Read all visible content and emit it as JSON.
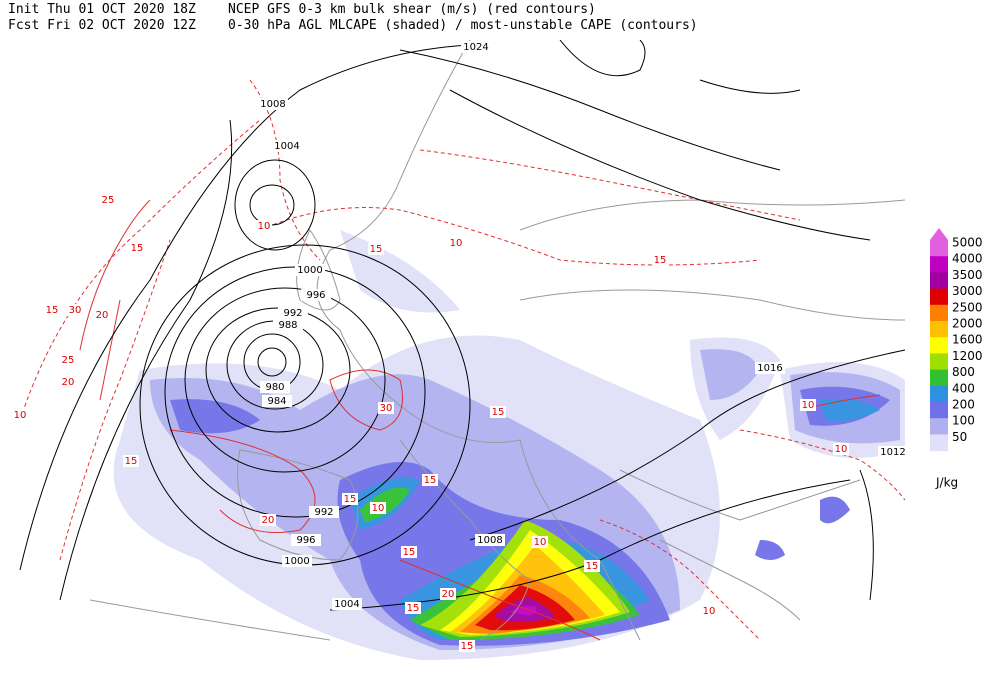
{
  "header": {
    "init": "Init  Thu 01 OCT 2020 18Z",
    "fcst": "Fcst Fri 02 OCT 2020 12Z",
    "title1": "NCEP GFS 0-3 km bulk shear (m/s) (red contours)",
    "title2": "0-30 hPa AGL MLCAPE (shaded) / most-unstable CAPE (contours)"
  },
  "legend": {
    "values": [
      5000,
      4000,
      3500,
      3000,
      2500,
      2000,
      1600,
      1200,
      800,
      400,
      200,
      100,
      50
    ],
    "colors": [
      "#e060e0",
      "#c000c0",
      "#a000a0",
      "#e00000",
      "#ff8000",
      "#ffc000",
      "#ffff00",
      "#a0e000",
      "#30c030",
      "#3090e0",
      "#7070e8",
      "#b0b0f0",
      "#e0e0f8"
    ],
    "unit": "J/kg"
  },
  "isobar_labels": [
    1024,
    1008,
    1004,
    1000,
    996,
    992,
    988,
    980,
    984,
    1016,
    1012,
    1008,
    1004,
    1000,
    996,
    992
  ],
  "shear_labels": [
    25,
    15,
    15,
    30,
    20,
    25,
    20,
    10,
    15,
    10,
    15,
    15,
    20,
    15,
    15,
    10,
    15,
    10,
    10,
    15,
    30,
    15,
    20,
    10,
    15,
    10,
    10,
    15
  ]
}
